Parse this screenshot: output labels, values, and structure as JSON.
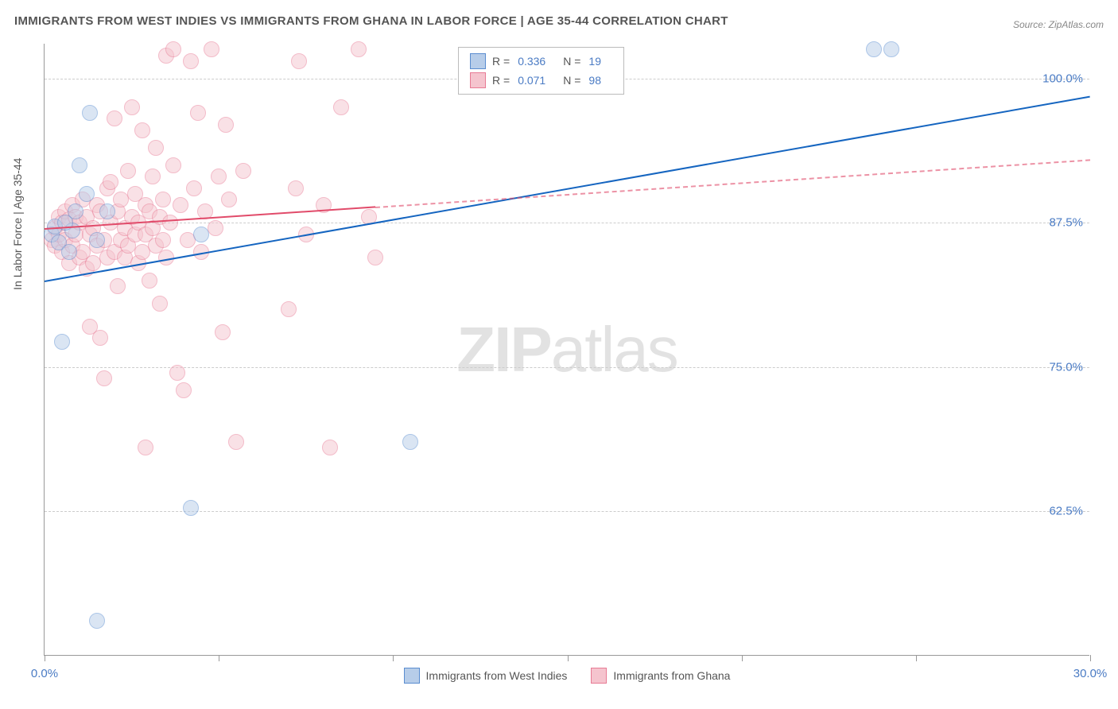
{
  "title": "IMMIGRANTS FROM WEST INDIES VS IMMIGRANTS FROM GHANA IN LABOR FORCE | AGE 35-44 CORRELATION CHART",
  "source": "Source: ZipAtlas.com",
  "ylabel": "In Labor Force | Age 35-44",
  "watermark_bold": "ZIP",
  "watermark_light": "atlas",
  "chart": {
    "type": "scatter",
    "xlim": [
      0,
      30
    ],
    "ylim": [
      50,
      103
    ],
    "xticks": [
      0,
      5,
      10,
      15,
      20,
      25,
      30
    ],
    "xtick_labels": {
      "0": "0.0%",
      "30": "30.0%"
    },
    "yticks": [
      62.5,
      75.0,
      87.5,
      100.0
    ],
    "ytick_labels": [
      "62.5%",
      "75.0%",
      "87.5%",
      "100.0%"
    ],
    "grid_color": "#cccccc",
    "background_color": "#ffffff",
    "marker_radius": 10,
    "marker_opacity": 0.5
  },
  "series": [
    {
      "name": "Immigrants from West Indies",
      "color_fill": "#b7cde9",
      "color_stroke": "#5a8dd0",
      "trend_color": "#1565c0",
      "R": "0.336",
      "N": "19",
      "trend": {
        "x1": 0,
        "y1": 82.5,
        "x2": 30,
        "y2": 98.5,
        "solid_until_x": 30
      },
      "points": [
        [
          0.2,
          86.5
        ],
        [
          0.3,
          87.2
        ],
        [
          0.4,
          85.8
        ],
        [
          0.5,
          77.2
        ],
        [
          0.8,
          86.8
        ],
        [
          1.0,
          92.5
        ],
        [
          1.2,
          90.0
        ],
        [
          1.3,
          97.0
        ],
        [
          1.5,
          86.0
        ],
        [
          1.8,
          88.5
        ],
        [
          1.5,
          53.0
        ],
        [
          4.2,
          62.8
        ],
        [
          4.5,
          86.5
        ],
        [
          10.5,
          68.5
        ],
        [
          23.8,
          102.5
        ],
        [
          24.3,
          102.5
        ],
        [
          0.6,
          87.5
        ],
        [
          0.7,
          85.0
        ],
        [
          0.9,
          88.5
        ]
      ]
    },
    {
      "name": "Immigrants from Ghana",
      "color_fill": "#f5c4ce",
      "color_stroke": "#e87a94",
      "trend_color": "#e14b6a",
      "R": "0.071",
      "N": "98",
      "trend": {
        "x1": 0,
        "y1": 87.0,
        "x2": 30,
        "y2": 93.0,
        "solid_until_x": 9.5
      },
      "points": [
        [
          0.2,
          86.0
        ],
        [
          0.3,
          87.0
        ],
        [
          0.3,
          85.5
        ],
        [
          0.4,
          88.0
        ],
        [
          0.4,
          86.5
        ],
        [
          0.5,
          87.5
        ],
        [
          0.5,
          85.0
        ],
        [
          0.6,
          88.5
        ],
        [
          0.6,
          86.0
        ],
        [
          0.7,
          87.8
        ],
        [
          0.7,
          84.0
        ],
        [
          0.8,
          89.0
        ],
        [
          0.8,
          85.5
        ],
        [
          0.9,
          88.0
        ],
        [
          0.9,
          86.5
        ],
        [
          1.0,
          87.5
        ],
        [
          1.0,
          84.5
        ],
        [
          1.1,
          89.5
        ],
        [
          1.1,
          85.0
        ],
        [
          1.2,
          88.0
        ],
        [
          1.2,
          83.5
        ],
        [
          1.3,
          86.5
        ],
        [
          1.3,
          78.5
        ],
        [
          1.4,
          87.0
        ],
        [
          1.4,
          84.0
        ],
        [
          1.5,
          89.0
        ],
        [
          1.5,
          85.5
        ],
        [
          1.6,
          77.5
        ],
        [
          1.6,
          88.5
        ],
        [
          1.7,
          86.0
        ],
        [
          1.7,
          74.0
        ],
        [
          1.8,
          90.5
        ],
        [
          1.8,
          84.5
        ],
        [
          1.9,
          87.5
        ],
        [
          1.9,
          91.0
        ],
        [
          2.0,
          85.0
        ],
        [
          2.0,
          96.5
        ],
        [
          2.1,
          88.5
        ],
        [
          2.1,
          82.0
        ],
        [
          2.2,
          86.0
        ],
        [
          2.2,
          89.5
        ],
        [
          2.3,
          87.0
        ],
        [
          2.3,
          84.5
        ],
        [
          2.4,
          92.0
        ],
        [
          2.4,
          85.5
        ],
        [
          2.5,
          88.0
        ],
        [
          2.5,
          97.5
        ],
        [
          2.6,
          86.5
        ],
        [
          2.6,
          90.0
        ],
        [
          2.7,
          84.0
        ],
        [
          2.7,
          87.5
        ],
        [
          2.8,
          95.5
        ],
        [
          2.8,
          85.0
        ],
        [
          2.9,
          89.0
        ],
        [
          2.9,
          86.5
        ],
        [
          3.0,
          88.5
        ],
        [
          3.0,
          82.5
        ],
        [
          3.1,
          87.0
        ],
        [
          3.1,
          91.5
        ],
        [
          3.2,
          85.5
        ],
        [
          3.2,
          94.0
        ],
        [
          3.3,
          80.5
        ],
        [
          3.3,
          88.0
        ],
        [
          3.4,
          86.0
        ],
        [
          3.4,
          89.5
        ],
        [
          3.5,
          102.0
        ],
        [
          3.5,
          84.5
        ],
        [
          3.6,
          87.5
        ],
        [
          3.7,
          92.5
        ],
        [
          3.7,
          102.5
        ],
        [
          3.8,
          74.5
        ],
        [
          3.9,
          89.0
        ],
        [
          4.0,
          73.0
        ],
        [
          4.1,
          86.0
        ],
        [
          4.2,
          101.5
        ],
        [
          4.3,
          90.5
        ],
        [
          4.4,
          97.0
        ],
        [
          4.5,
          85.0
        ],
        [
          4.6,
          88.5
        ],
        [
          4.8,
          102.5
        ],
        [
          4.9,
          87.0
        ],
        [
          5.0,
          91.5
        ],
        [
          5.1,
          78.0
        ],
        [
          5.2,
          96.0
        ],
        [
          5.3,
          89.5
        ],
        [
          5.5,
          68.5
        ],
        [
          5.7,
          92.0
        ],
        [
          7.2,
          90.5
        ],
        [
          7.0,
          80.0
        ],
        [
          7.3,
          101.5
        ],
        [
          7.5,
          86.5
        ],
        [
          8.0,
          89.0
        ],
        [
          8.2,
          68.0
        ],
        [
          8.5,
          97.5
        ],
        [
          9.0,
          102.5
        ],
        [
          9.3,
          88.0
        ],
        [
          9.5,
          84.5
        ],
        [
          2.9,
          68.0
        ]
      ]
    }
  ],
  "legend_top": {
    "R_label": "R =",
    "N_label": "N ="
  },
  "legend_bottom_label_1": "Immigrants from West Indies",
  "legend_bottom_label_2": "Immigrants from Ghana"
}
